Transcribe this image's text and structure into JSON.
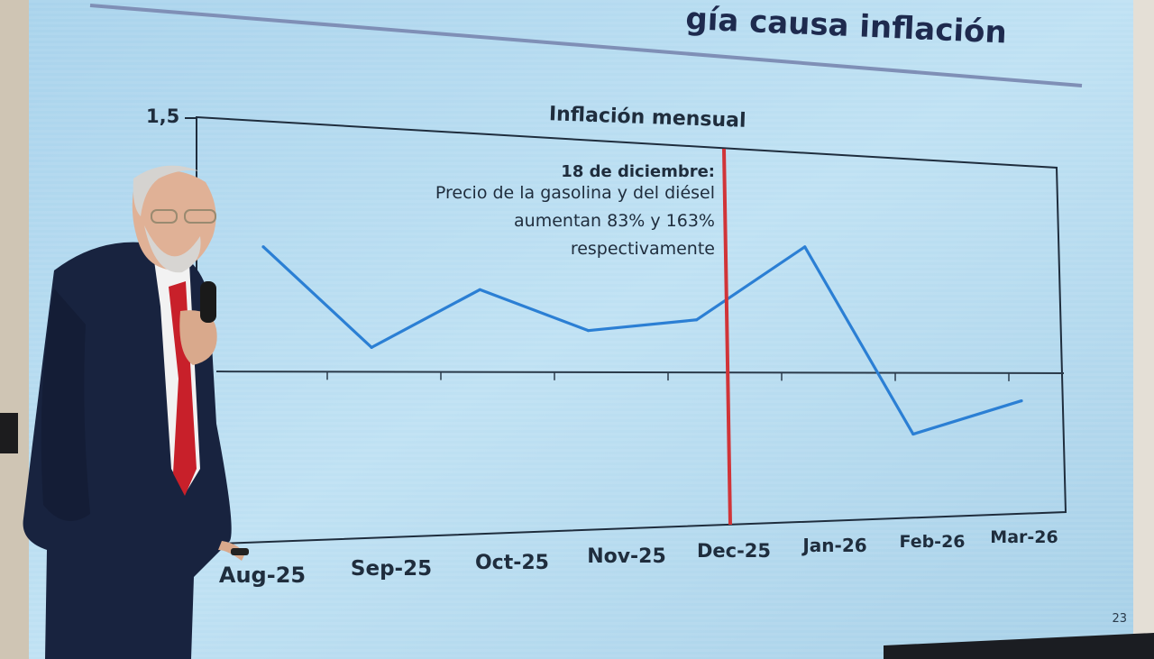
{
  "slide": {
    "title_visible": "gía causa inflación",
    "page_number": "23"
  },
  "chart_data": {
    "type": "line",
    "title": "Inflación mensual",
    "categories": [
      "Aug-25",
      "Sep-25",
      "Oct-25",
      "Nov-25",
      "Dec-25",
      "Jan-26",
      "Feb-26",
      "Mar-26"
    ],
    "series": [
      {
        "values": [
          0.75,
          0.15,
          0.52,
          0.27,
          0.35,
          0.86,
          -0.43,
          -0.2
        ]
      }
    ],
    "y_tick_label": "1,5",
    "ylim": [
      -0.8,
      1.5
    ],
    "grid": false,
    "colors": {
      "line": "#2b7fd4",
      "marker": "#d13438",
      "zero_axis": "#2a3a4a"
    },
    "annotation": {
      "date": "18 de diciembre:",
      "lines": [
        "Precio de la gasolina y del diésel",
        "aumentan 83% y 163%",
        "respectivamente"
      ]
    }
  }
}
